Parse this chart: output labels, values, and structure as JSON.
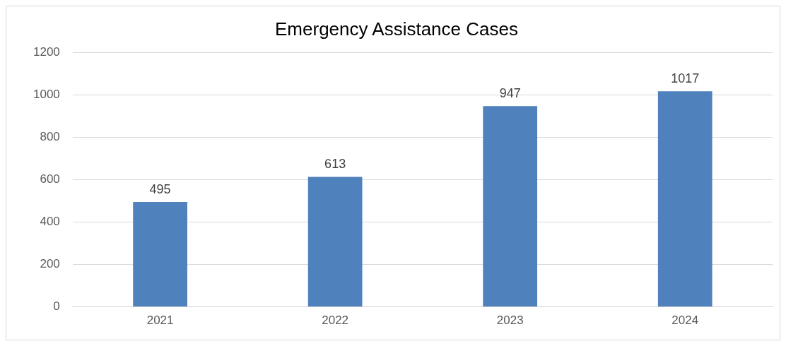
{
  "chart_data": {
    "type": "bar",
    "title": "Emergency Assistance Cases",
    "categories": [
      "2021",
      "2022",
      "2023",
      "2024"
    ],
    "values": [
      495,
      613,
      947,
      1017
    ],
    "color": "#4f81bd",
    "ylim": [
      0,
      1200
    ],
    "yticks": [
      0,
      200,
      400,
      600,
      800,
      1000,
      1200
    ],
    "grid": "y",
    "legend": false,
    "data_labels": true
  }
}
